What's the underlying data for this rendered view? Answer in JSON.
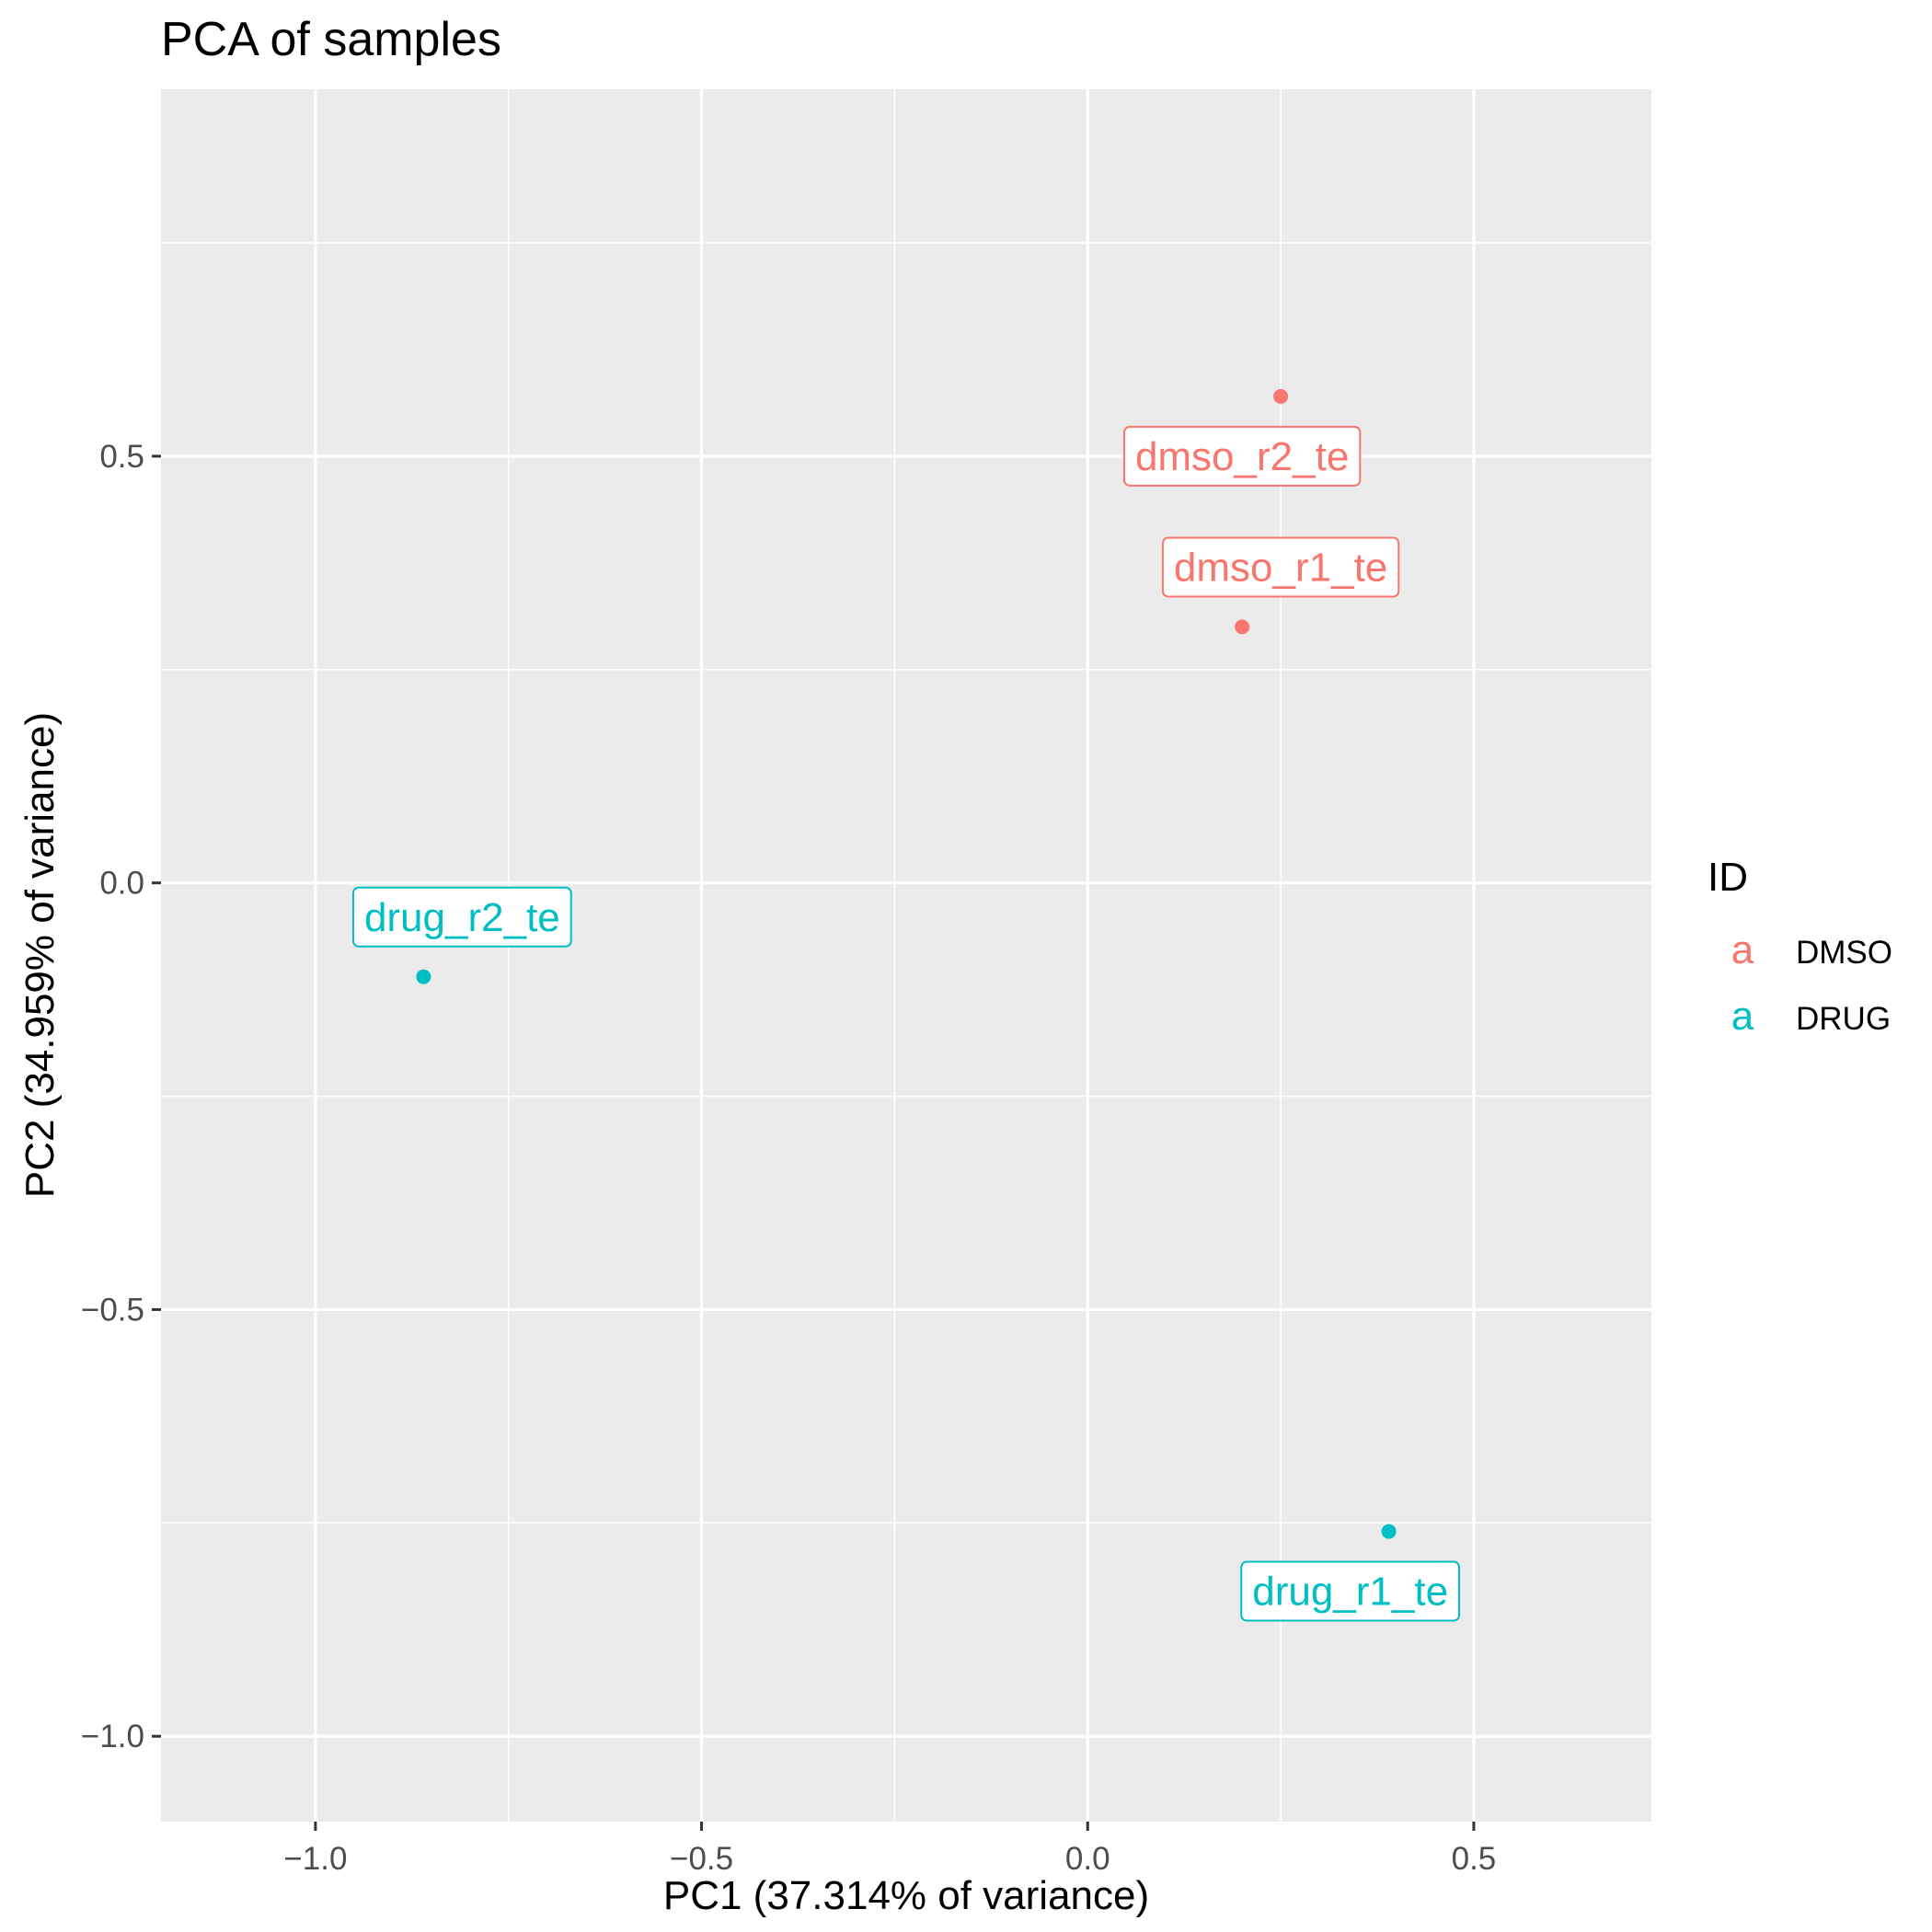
{
  "chart_data": {
    "type": "scatter",
    "title": "PCA of samples",
    "xlabel": "PC1 (37.314% of variance)",
    "ylabel": "PC2 (34.959% of variance)",
    "xlim": [
      -1.2,
      0.73
    ],
    "ylim": [
      -1.1,
      0.93
    ],
    "x_ticks": [
      -1.0,
      -0.5,
      0.0,
      0.5
    ],
    "x_tick_labels": [
      "−1.0",
      "−0.5",
      "0.0",
      "0.5"
    ],
    "y_ticks": [
      -1.0,
      -0.5,
      0.0,
      0.5
    ],
    "y_tick_labels": [
      "−1.0",
      "−0.5",
      "0.0",
      "0.5"
    ],
    "grid": true,
    "panel_background": "#ebebeb",
    "legend": {
      "title": "ID",
      "placement": "right",
      "key_glyph": "a",
      "entries": [
        {
          "label": "DMSO",
          "color": "#f8766d"
        },
        {
          "label": "DRUG",
          "color": "#00bfc4"
        }
      ]
    },
    "series": [
      {
        "name": "DMSO",
        "color": "#f8766d",
        "points": [
          {
            "label": "dmso_r2_te",
            "x": 0.25,
            "y": 0.57,
            "label_dx": -0.05,
            "label_dy": -0.07
          },
          {
            "label": "dmso_r1_te",
            "x": 0.2,
            "y": 0.3,
            "label_dx": 0.05,
            "label_dy": 0.07
          }
        ]
      },
      {
        "name": "DRUG",
        "color": "#00bfc4",
        "points": [
          {
            "label": "drug_r2_te",
            "x": -0.86,
            "y": -0.11,
            "label_dx": 0.05,
            "label_dy": 0.07
          },
          {
            "label": "drug_r1_te",
            "x": 0.39,
            "y": -0.76,
            "label_dx": -0.05,
            "label_dy": -0.07
          }
        ]
      }
    ]
  }
}
